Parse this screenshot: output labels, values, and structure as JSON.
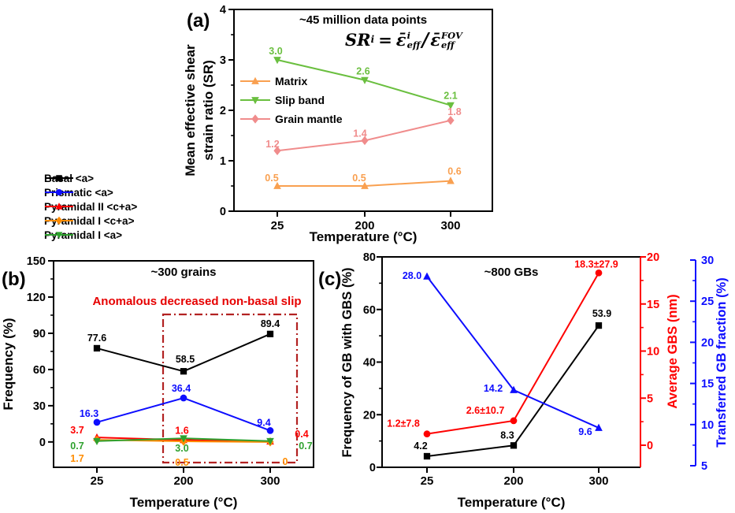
{
  "figure": {
    "background": "#ffffff"
  },
  "formula": {
    "lhs": "SR",
    "lhs_sub": "i",
    "equals": "=",
    "num_base": "ε̄",
    "num_sup": "i",
    "num_sub": "eff",
    "slash": "/",
    "den_base": "ε̄",
    "den_sup": "FOV",
    "den_sub": "eff"
  },
  "chart_data": [
    {
      "id": "a",
      "type": "line",
      "panel_label": "(a)",
      "title": "~45 million data points",
      "xlabel": "Temperature (°C)",
      "ylabel_lines": [
        "Mean effective shear",
        "strain ratio (SR)"
      ],
      "categories": [
        "25",
        "200",
        "300"
      ],
      "ylim": [
        0,
        4
      ],
      "yticks": [
        0,
        1,
        2,
        3,
        4
      ],
      "legend_position": "inside-left",
      "series": [
        {
          "name": "Matrix",
          "color": "#f9a050",
          "marker": "triangle-up",
          "values": [
            0.5,
            0.5,
            0.6
          ],
          "labels": [
            "0.5",
            "0.5",
            "0.6"
          ]
        },
        {
          "name": "Slip band",
          "color": "#6abf3f",
          "marker": "triangle-down",
          "values": [
            3.0,
            2.6,
            2.1
          ],
          "labels": [
            "3.0",
            "2.6",
            "2.1"
          ]
        },
        {
          "name": "Grain mantle",
          "color": "#f08c8c",
          "marker": "diamond",
          "values": [
            1.2,
            1.4,
            1.8
          ],
          "labels": [
            "1.2",
            "1.4",
            "1.8"
          ]
        }
      ]
    },
    {
      "id": "b",
      "type": "line",
      "panel_label": "(b)",
      "title": "~300 grains",
      "xlabel": "Temperature (°C)",
      "ylabel": "Frequency (%)",
      "categories": [
        "25",
        "200",
        "300"
      ],
      "ylim": [
        0,
        150
      ],
      "yticks": [
        0,
        30,
        60,
        90,
        120,
        150
      ],
      "annotation": {
        "text": "Anomalous decreased non-basal slip",
        "text_color": "#e60000",
        "box_color": "#b22222",
        "box_style": "dash-dot"
      },
      "series": [
        {
          "name": "Basal <a>",
          "color": "#000000",
          "marker": "square",
          "values": [
            77.6,
            58.5,
            89.4
          ],
          "labels": [
            "77.6",
            "58.5",
            "89.4"
          ]
        },
        {
          "name": "Prismatic <a>",
          "color": "#0d0dff",
          "marker": "circle",
          "values": [
            16.3,
            36.4,
            9.4
          ],
          "labels": [
            "16.3",
            "36.4",
            "9.4"
          ]
        },
        {
          "name": "Pyramidal II <c+a>",
          "color": "#fe0000",
          "marker": "triangle-up",
          "values": [
            3.7,
            1.6,
            0.4
          ],
          "labels": [
            "3.7",
            "1.6",
            "0.4"
          ]
        },
        {
          "name": "Pyramidal I <c+a>",
          "color": "#ff8c00",
          "marker": "diamond",
          "values": [
            1.7,
            0.5,
            0
          ],
          "labels": [
            "1.7",
            "0.5",
            "0"
          ]
        },
        {
          "name": "Pyramidal I <a>",
          "color": "#2fa12f",
          "marker": "triangle-down",
          "values": [
            0.7,
            3.0,
            0.7
          ],
          "labels": [
            "0.7",
            "3.0",
            "0.7"
          ]
        }
      ]
    },
    {
      "id": "c",
      "type": "line",
      "panel_label": "(c)",
      "title": "~800 GBs",
      "xlabel": "Temperature (°C)",
      "categories": [
        "25",
        "200",
        "300"
      ],
      "axes": {
        "left": {
          "label": "Frequency of GB with GBS (%)",
          "color": "#000000",
          "lim": [
            0,
            80
          ],
          "ticks": [
            0,
            20,
            40,
            60,
            80
          ]
        },
        "right1": {
          "label": "Average GBS (nm)",
          "color": "#fe0000",
          "lim": [
            0,
            20
          ],
          "ticks": [
            0,
            5,
            10,
            15,
            20
          ]
        },
        "right2": {
          "label": "Transferred GB fraction (%)",
          "color": "#0d0dff",
          "lim": [
            5,
            30
          ],
          "ticks": [
            5,
            10,
            15,
            20,
            25,
            30
          ]
        }
      },
      "series": [
        {
          "name": "Frequency of GB with GBS",
          "axis": "left",
          "color": "#000000",
          "marker": "square",
          "values": [
            4.2,
            8.3,
            53.9
          ],
          "labels": [
            "4.2",
            "8.3",
            "53.9"
          ]
        },
        {
          "name": "Average GBS",
          "axis": "right1",
          "color": "#fe0000",
          "marker": "circle",
          "values": [
            1.2,
            2.6,
            18.3
          ],
          "errors": [
            7.8,
            10.7,
            27.9
          ],
          "labels": [
            "1.2±7.8",
            "2.6±10.7",
            "18.3±27.9"
          ]
        },
        {
          "name": "Transferred GB fraction",
          "axis": "right2",
          "color": "#0d0dff",
          "marker": "triangle-up",
          "values": [
            28.0,
            14.2,
            9.6
          ],
          "labels": [
            "28.0",
            "14.2",
            "9.6"
          ]
        }
      ]
    }
  ]
}
